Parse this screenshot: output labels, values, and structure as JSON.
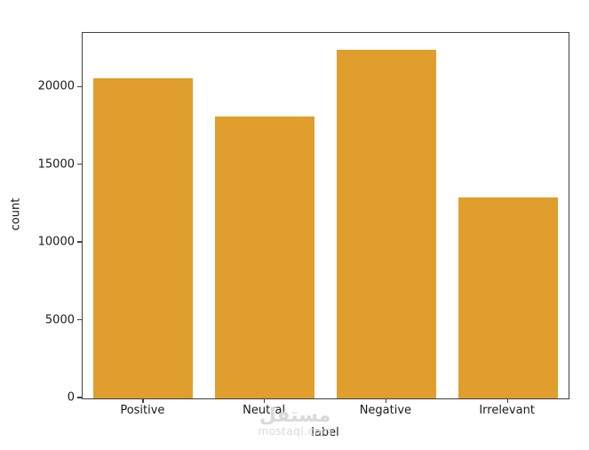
{
  "figure": {
    "background": "#ffffff",
    "spine_color": "#404040",
    "text_color": "#1a1a1a"
  },
  "watermark": {
    "arabic": "مستقل",
    "latin": "mostaql.com",
    "color": "#d9d9d9"
  },
  "chart_data": {
    "type": "bar",
    "title": "",
    "categories": [
      "Positive",
      "Neutral",
      "Negative",
      "Irrelevant"
    ],
    "values": [
      20600,
      18100,
      22400,
      12950
    ],
    "xlabel": "label",
    "ylabel": "count",
    "ylim": [
      0,
      23500
    ],
    "yticks": [
      0,
      5000,
      10000,
      15000,
      20000
    ],
    "bar_color": "#E09E2C",
    "bar_width_fraction": 0.82,
    "grid": false,
    "legend": null
  }
}
